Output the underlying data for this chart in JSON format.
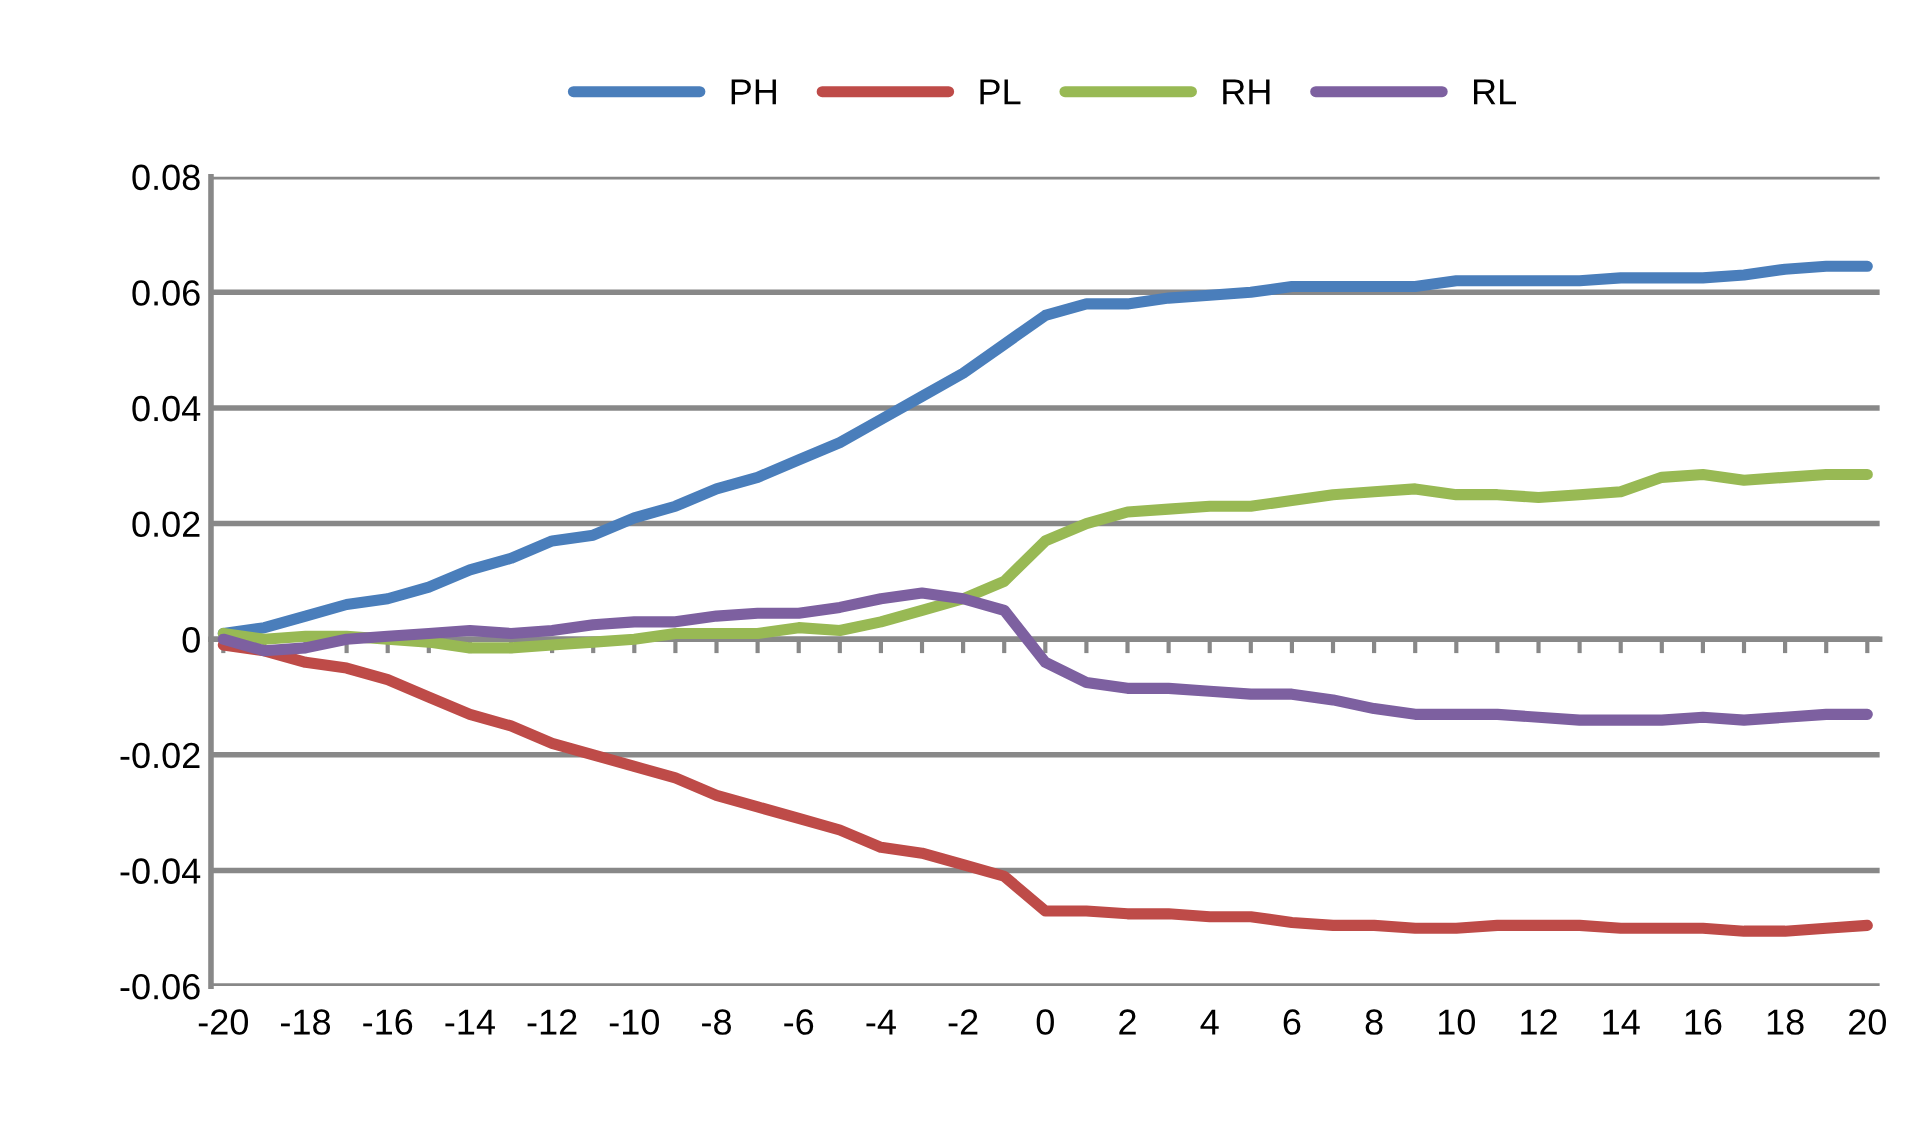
{
  "chart_data": {
    "type": "line",
    "categories": [
      "-20",
      null,
      "-18",
      null,
      "-16",
      null,
      "-14",
      null,
      "-12",
      null,
      "-10",
      null,
      "-8",
      null,
      "-6",
      null,
      "-4",
      null,
      "-2",
      null,
      "0",
      null,
      "2",
      null,
      "4",
      null,
      "6",
      null,
      "8",
      null,
      "10",
      null,
      "12",
      null,
      "14",
      null,
      "16",
      null,
      "18",
      null,
      "20"
    ],
    "series": [
      {
        "name": "PH",
        "color": "#4a7ebb",
        "values": [
          0.001,
          0.002,
          0.004,
          0.006,
          0.007,
          0.009,
          0.012,
          0.014,
          0.017,
          0.018,
          0.021,
          0.023,
          0.026,
          0.028,
          0.031,
          0.034,
          0.038,
          0.042,
          0.046,
          0.051,
          0.056,
          0.058,
          0.058,
          0.059,
          0.0595,
          0.06,
          0.061,
          0.061,
          0.061,
          0.061,
          0.062,
          0.062,
          0.062,
          0.062,
          0.0625,
          0.0625,
          0.0625,
          0.063,
          0.064,
          0.0645,
          0.0645
        ]
      },
      {
        "name": "PL",
        "color": "#be4b48",
        "values": [
          -0.001,
          -0.002,
          -0.004,
          -0.005,
          -0.007,
          -0.01,
          -0.013,
          -0.015,
          -0.018,
          -0.02,
          -0.022,
          -0.024,
          -0.027,
          -0.029,
          -0.031,
          -0.033,
          -0.036,
          -0.037,
          -0.039,
          -0.041,
          -0.047,
          -0.047,
          -0.0475,
          -0.0475,
          -0.048,
          -0.048,
          -0.049,
          -0.0495,
          -0.0495,
          -0.05,
          -0.05,
          -0.0495,
          -0.0495,
          -0.0495,
          -0.05,
          -0.05,
          -0.05,
          -0.0505,
          -0.0505,
          -0.05,
          -0.0495
        ]
      },
      {
        "name": "RH",
        "color": "#98b954",
        "values": [
          0.001,
          0,
          0.0005,
          0.0005,
          0,
          -0.0005,
          -0.0015,
          -0.0015,
          -0.001,
          -0.0005,
          0,
          0.001,
          0.001,
          0.001,
          0.002,
          0.0015,
          0.003,
          0.005,
          0.007,
          0.01,
          0.017,
          0.02,
          0.022,
          0.0225,
          0.023,
          0.023,
          0.024,
          0.025,
          0.0255,
          0.026,
          0.025,
          0.025,
          0.0245,
          0.025,
          0.0255,
          0.028,
          0.0285,
          0.0275,
          0.028,
          0.0285,
          0.0285
        ]
      },
      {
        "name": "RL",
        "color": "#7d60a0",
        "values": [
          0,
          -0.002,
          -0.0015,
          0,
          0.0005,
          0.001,
          0.0015,
          0.001,
          0.0015,
          0.0025,
          0.003,
          0.003,
          0.004,
          0.0045,
          0.0045,
          0.0055,
          0.007,
          0.008,
          0.007,
          0.005,
          -0.004,
          -0.0075,
          -0.0085,
          -0.0085,
          -0.009,
          -0.0095,
          -0.0095,
          -0.0105,
          -0.012,
          -0.013,
          -0.013,
          -0.013,
          -0.0135,
          -0.014,
          -0.014,
          -0.014,
          -0.0135,
          -0.014,
          -0.0135,
          -0.013,
          -0.013
        ]
      }
    ],
    "ylim": [
      -0.06,
      0.08
    ],
    "yticks": [
      -0.06,
      -0.04,
      -0.02,
      0,
      0.02,
      0.04,
      0.06,
      0.08
    ],
    "grid": "y",
    "legend": "top",
    "marker": "none",
    "line_style": "solid"
  }
}
